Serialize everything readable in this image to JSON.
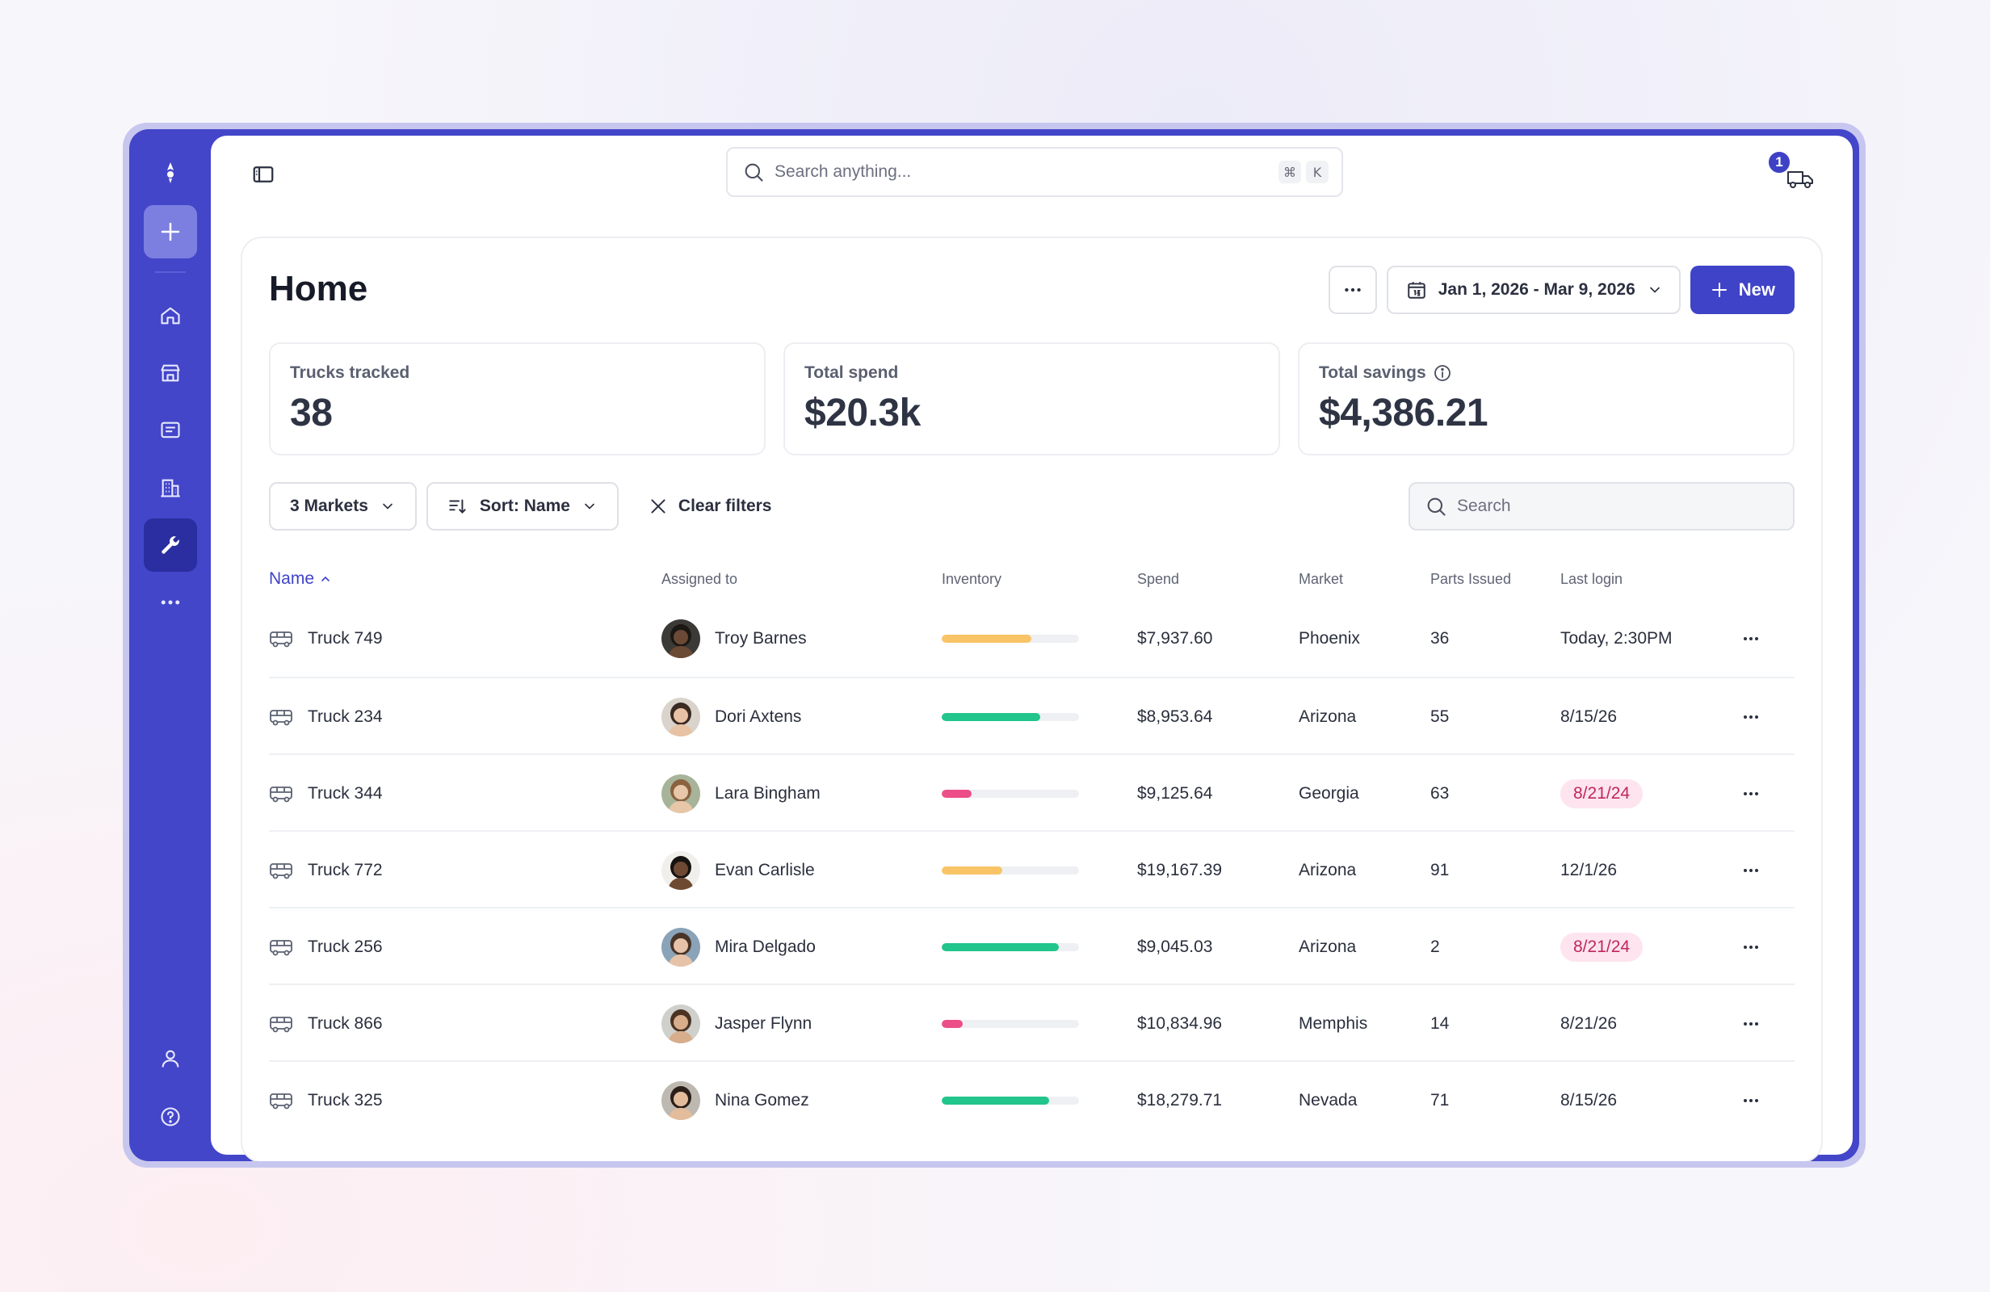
{
  "search": {
    "placeholder": "Search anything...",
    "kbd": [
      "⌘",
      "K"
    ]
  },
  "notifications": {
    "count": "1"
  },
  "page": {
    "title": "Home"
  },
  "header": {
    "date_range": "Jan 1, 2026 - Mar 9, 2026",
    "new_label": "New"
  },
  "stats": [
    {
      "label": "Trucks tracked",
      "value": "38"
    },
    {
      "label": "Total spend",
      "value": "$20.3k"
    },
    {
      "label": "Total savings",
      "value": "$4,386.21"
    }
  ],
  "filters": {
    "markets_label": "3 Markets",
    "sort_label": "Sort: Name",
    "clear_label": "Clear filters",
    "search_placeholder": "Search"
  },
  "table": {
    "columns": {
      "name": "Name",
      "assigned": "Assigned to",
      "inventory": "Inventory",
      "spend": "Spend",
      "market": "Market",
      "parts": "Parts Issued",
      "login": "Last login"
    },
    "rows": [
      {
        "name": "Truck 749",
        "assigned": "Troy Barnes",
        "inventory": 0.65,
        "inventory_color": "#f8c466",
        "spend": "$7,937.60",
        "market": "Phoenix",
        "parts": "36",
        "login": "Today, 2:30PM",
        "login_alert": false,
        "avatar_bg": "#3b3a36",
        "skin": "#6b4a35",
        "hair": "#1a1714"
      },
      {
        "name": "Truck 234",
        "assigned": "Dori Axtens",
        "inventory": 0.72,
        "inventory_color": "#22c58b",
        "spend": "$8,953.64",
        "market": "Arizona",
        "parts": "55",
        "login": "8/15/26",
        "login_alert": false,
        "avatar_bg": "#d9d3cb",
        "skin": "#e8c2a4",
        "hair": "#3a2a22"
      },
      {
        "name": "Truck 344",
        "assigned": "Lara Bingham",
        "inventory": 0.22,
        "inventory_color": "#ec4e88",
        "spend": "$9,125.64",
        "market": "Georgia",
        "parts": "63",
        "login": "8/21/24",
        "login_alert": true,
        "avatar_bg": "#a7b49a",
        "skin": "#e8c7a8",
        "hair": "#8a6240"
      },
      {
        "name": "Truck 772",
        "assigned": "Evan Carlisle",
        "inventory": 0.44,
        "inventory_color": "#f8c466",
        "spend": "$19,167.39",
        "market": "Arizona",
        "parts": "91",
        "login": "12/1/26",
        "login_alert": false,
        "avatar_bg": "#f1efec",
        "skin": "#6e4a33",
        "hair": "#161412"
      },
      {
        "name": "Truck 256",
        "assigned": "Mira Delgado",
        "inventory": 0.85,
        "inventory_color": "#22c58b",
        "spend": "$9,045.03",
        "market": "Arizona",
        "parts": "2",
        "login": "8/21/24",
        "login_alert": true,
        "avatar_bg": "#8aa3b8",
        "skin": "#e6c3a8",
        "hair": "#4a3426"
      },
      {
        "name": "Truck 866",
        "assigned": "Jasper Flynn",
        "inventory": 0.15,
        "inventory_color": "#ec4e88",
        "spend": "$10,834.96",
        "market": "Memphis",
        "parts": "14",
        "login": "8/21/26",
        "login_alert": false,
        "avatar_bg": "#cfd0cb",
        "skin": "#d8ad8c",
        "hair": "#4a3322"
      },
      {
        "name": "Truck 325",
        "assigned": "Nina Gomez",
        "inventory": 0.78,
        "inventory_color": "#22c58b",
        "spend": "$18,279.71",
        "market": "Nevada",
        "parts": "71",
        "login": "8/15/26",
        "login_alert": false,
        "avatar_bg": "#bdb8b0",
        "skin": "#e3bc9c",
        "hair": "#2b1f19"
      }
    ]
  },
  "colors": {
    "brand": "#4346c9",
    "accent": "#3f43c8",
    "alert_bg": "#fde4ee",
    "alert_text": "#c0275d"
  },
  "icons": {
    "sidebar": [
      "logo-icon",
      "plus-icon",
      "home-icon",
      "store-icon",
      "messages-icon",
      "building-icon",
      "wrench-icon",
      "more-icon",
      "user-icon",
      "help-icon"
    ]
  }
}
